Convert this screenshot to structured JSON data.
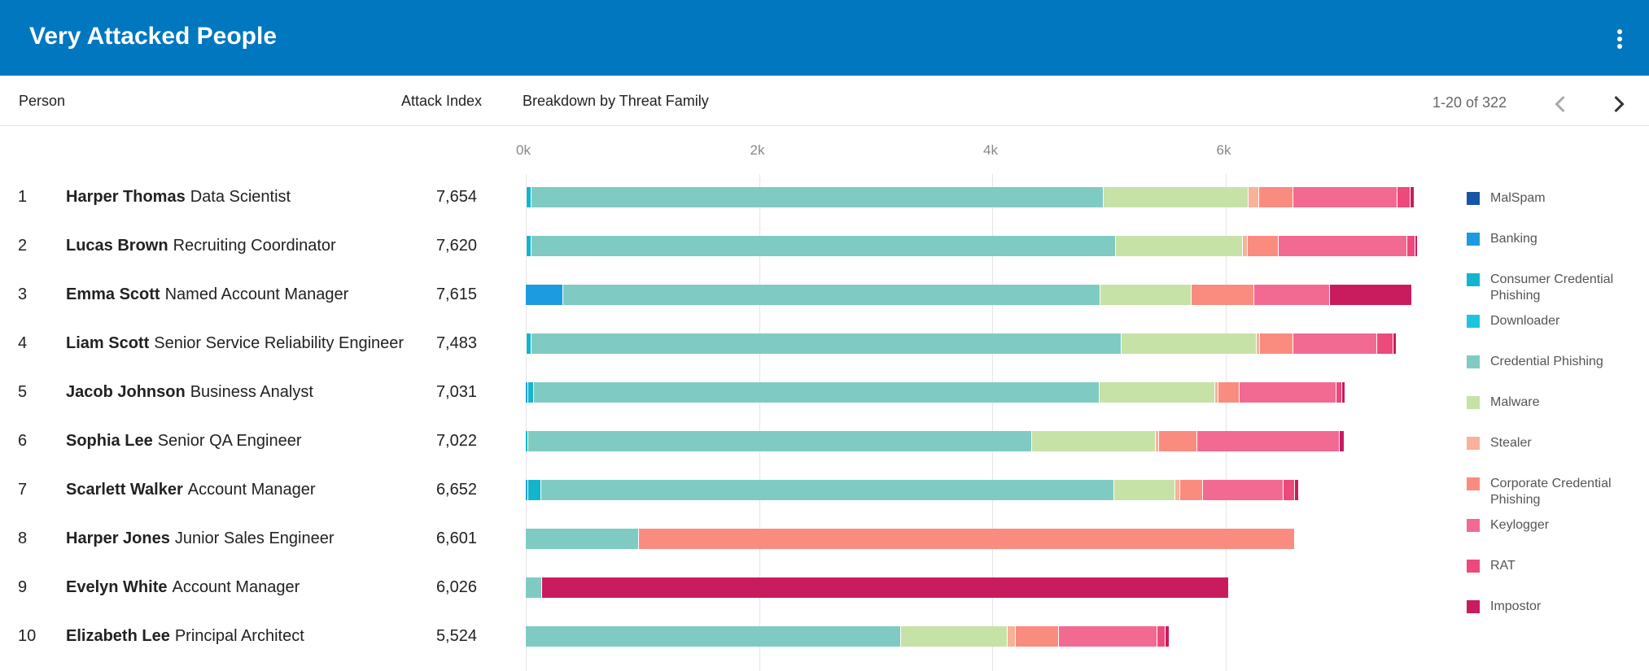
{
  "header": {
    "title": "Very Attacked People",
    "menu_icon": "more-vert-icon"
  },
  "columns": {
    "person": "Person",
    "attack_index": "Attack Index",
    "breakdown": "Breakdown by Threat Family"
  },
  "pagination": {
    "label": "1-20 of 322",
    "prev_icon": "chevron-left-icon",
    "next_icon": "chevron-right-icon"
  },
  "chart_data": {
    "type": "bar",
    "orientation": "horizontal",
    "stacked": true,
    "x_ticks": [
      "0k",
      "2k",
      "4k",
      "6k"
    ],
    "xlim": [
      0,
      7700
    ],
    "grid": true,
    "legend_position": "right",
    "series": [
      {
        "name": "MalSpam",
        "color": "#1755a8"
      },
      {
        "name": "Banking",
        "color": "#1d9be0"
      },
      {
        "name": "Consumer Credential Phishing",
        "color": "#13b5cd"
      },
      {
        "name": "Downloader",
        "color": "#1ec6dd"
      },
      {
        "name": "Credential Phishing",
        "color": "#7fcbc3"
      },
      {
        "name": "Malware",
        "color": "#c6e2a6"
      },
      {
        "name": "Stealer",
        "color": "#f9b199"
      },
      {
        "name": "Corporate Credential Phishing",
        "color": "#f98c7e"
      },
      {
        "name": "Keylogger",
        "color": "#f26a92"
      },
      {
        "name": "RAT",
        "color": "#ec4a7b"
      },
      {
        "name": "Impostor",
        "color": "#c91c5e"
      }
    ],
    "rows": [
      {
        "rank": "1",
        "name": "Harper Thomas",
        "role": "Data Scientist",
        "attack_index": "7,654",
        "values": [
          0,
          10,
          40,
          0,
          4910,
          1240,
          90,
          290,
          900,
          110,
          30
        ]
      },
      {
        "rank": "2",
        "name": "Lucas Brown",
        "role": "Recruiting Coordinator",
        "attack_index": "7,620",
        "values": [
          0,
          10,
          40,
          0,
          5010,
          1090,
          40,
          270,
          1100,
          70,
          20
        ]
      },
      {
        "rank": "3",
        "name": "Emma Scott",
        "role": "Named Account Manager",
        "attack_index": "7,615",
        "values": [
          0,
          320,
          0,
          0,
          4610,
          780,
          0,
          540,
          650,
          0,
          700
        ]
      },
      {
        "rank": "4",
        "name": "Liam Scott",
        "role": "Senior Service Reliability Engineer",
        "attack_index": "7,483",
        "values": [
          0,
          10,
          40,
          0,
          5060,
          1160,
          30,
          280,
          720,
          140,
          30
        ]
      },
      {
        "rank": "5",
        "name": "Jacob Johnson",
        "role": "Business Analyst",
        "attack_index": "7,031",
        "values": [
          0,
          20,
          50,
          0,
          4850,
          990,
          30,
          180,
          830,
          50,
          30
        ]
      },
      {
        "rank": "6",
        "name": "Sophia Lee",
        "role": "Senior QA Engineer",
        "attack_index": "7,022",
        "values": [
          0,
          0,
          20,
          0,
          4320,
          1060,
          30,
          330,
          1220,
          0,
          40
        ]
      },
      {
        "rank": "7",
        "name": "Scarlett Walker",
        "role": "Account Manager",
        "attack_index": "6,652",
        "values": [
          0,
          20,
          110,
          0,
          4920,
          520,
          40,
          200,
          690,
          100,
          30
        ]
      },
      {
        "rank": "8",
        "name": "Harper Jones",
        "role": "Junior Sales Engineer",
        "attack_index": "6,601",
        "values": [
          0,
          0,
          0,
          0,
          970,
          0,
          0,
          5630,
          0,
          0,
          0
        ]
      },
      {
        "rank": "9",
        "name": "Evelyn White",
        "role": "Account Manager",
        "attack_index": "6,026",
        "values": [
          0,
          0,
          0,
          0,
          140,
          0,
          0,
          0,
          0,
          0,
          5890
        ]
      },
      {
        "rank": "10",
        "name": "Elizabeth Lee",
        "role": "Principal Architect",
        "attack_index": "5,524",
        "values": [
          0,
          0,
          0,
          0,
          3220,
          910,
          70,
          370,
          850,
          70,
          30
        ]
      }
    ]
  }
}
